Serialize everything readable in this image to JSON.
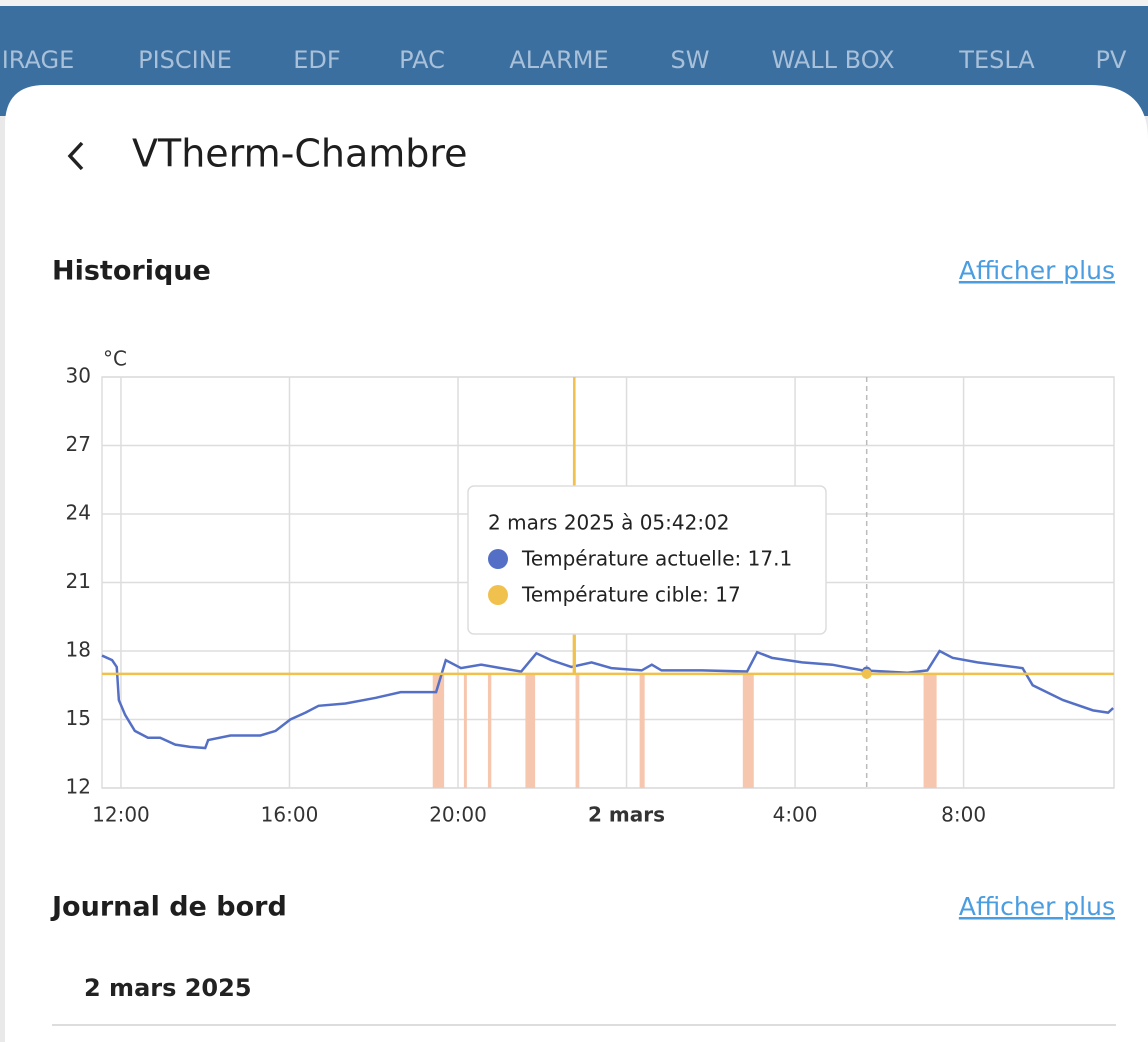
{
  "tabs": [
    "IRAGE",
    "PISCINE",
    "EDF",
    "PAC",
    "ALARME",
    "SW",
    "WALL BOX",
    "TESLA",
    "PV"
  ],
  "dialog": {
    "title": "VTherm-Chambre"
  },
  "history": {
    "heading": "Historique",
    "more": "Afficher plus"
  },
  "chart_data": {
    "type": "line",
    "y_unit": "°C",
    "xlim": [
      11.55,
      35.57
    ],
    "ylim": [
      12,
      30
    ],
    "xticks": [
      {
        "value": 12,
        "label": "12:00"
      },
      {
        "value": 16,
        "label": "16:00"
      },
      {
        "value": 20,
        "label": "20:00"
      },
      {
        "value": 24,
        "label": "2 mars"
      },
      {
        "value": 28,
        "label": "4:00"
      },
      {
        "value": 32,
        "label": "8:00"
      }
    ],
    "yticks": [
      12,
      15,
      18,
      21,
      24,
      27,
      30
    ],
    "grid": true,
    "series": [
      {
        "name": "Température actuelle",
        "color": "#5470c6",
        "x": [
          11.55,
          11.79,
          11.9,
          11.95,
          12.1,
          12.33,
          12.64,
          12.93,
          13.29,
          13.64,
          14.0,
          14.07,
          14.6,
          15.31,
          15.67,
          16.02,
          16.38,
          16.69,
          17.33,
          18.05,
          18.64,
          19.48,
          19.71,
          20.07,
          20.55,
          21.02,
          21.5,
          21.86,
          22.21,
          22.69,
          23.17,
          23.64,
          24.36,
          24.6,
          24.83,
          25.79,
          26.86,
          27.1,
          27.45,
          28.17,
          28.88,
          29.6,
          30.67,
          31.14,
          31.43,
          31.74,
          32.33,
          33.4,
          33.64,
          34.36,
          35.07,
          35.43,
          35.55
        ],
        "values": [
          17.8,
          17.6,
          17.3,
          15.85,
          15.2,
          14.5,
          14.2,
          14.2,
          13.9,
          13.8,
          13.75,
          14.1,
          14.3,
          14.3,
          14.5,
          15.0,
          15.3,
          15.6,
          15.7,
          15.95,
          16.2,
          16.2,
          17.6,
          17.25,
          17.4,
          17.25,
          17.1,
          17.9,
          17.6,
          17.3,
          17.5,
          17.25,
          17.15,
          17.4,
          17.15,
          17.15,
          17.1,
          17.95,
          17.7,
          17.5,
          17.4,
          17.15,
          17.05,
          17.15,
          18.0,
          17.7,
          17.5,
          17.25,
          16.5,
          15.85,
          15.4,
          15.3,
          15.5
        ]
      },
      {
        "name": "Température cible",
        "color": "#f0c14d",
        "x": [
          11.55,
          22.75,
          22.76,
          22.77,
          35.57
        ],
        "values": [
          17,
          17,
          30,
          17,
          17
        ]
      }
    ],
    "heating_periods": [
      [
        19.4,
        19.67
      ],
      [
        20.14,
        20.21
      ],
      [
        20.71,
        20.79
      ],
      [
        21.6,
        21.83
      ],
      [
        22.79,
        22.88
      ],
      [
        24.31,
        24.43
      ],
      [
        26.76,
        27.02
      ],
      [
        31.05,
        31.36
      ]
    ],
    "heating_color": "#f6c7ae"
  },
  "tooltip": {
    "x": 29.7,
    "time": "2 mars 2025 à 05:42:02",
    "lines": [
      {
        "label": "Température actuelle: 17.1",
        "value": 17.1
      },
      {
        "label": "Température cible: 17",
        "value": 17
      }
    ]
  },
  "journal": {
    "heading": "Journal de bord",
    "more": "Afficher plus",
    "date": "2 mars 2025"
  }
}
